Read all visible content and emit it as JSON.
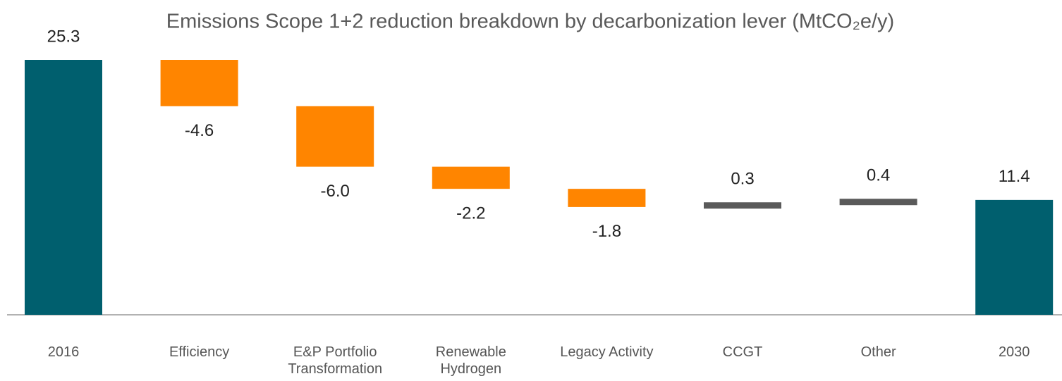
{
  "chart_data": {
    "type": "waterfall",
    "title": "Emissions Scope 1+2 reduction breakdown by decarbonization lever (MtCO₂e/y)",
    "categories": [
      "2016",
      "Efficiency",
      "E&P Portfolio Transformation",
      "Renewable Hydrogen",
      "Legacy Activity",
      "CCGT",
      "Other",
      "2030"
    ],
    "values": [
      25.3,
      -4.6,
      -6,
      -2.2,
      -1.8,
      0.3,
      0.4,
      11.4
    ],
    "value_labels": [
      "25.3",
      "-4.6",
      "-6.0",
      "-2.2",
      "-1.8",
      "0.3",
      "0.4",
      "11.4"
    ],
    "measure": [
      "absolute",
      "relative",
      "relative",
      "relative",
      "relative",
      "relative",
      "relative",
      "absolute"
    ],
    "total_color": "#005f6e",
    "decrease_color": "#ff8500",
    "increase_color": "#5a5a5a",
    "ylim": [
      0,
      25.3
    ]
  }
}
